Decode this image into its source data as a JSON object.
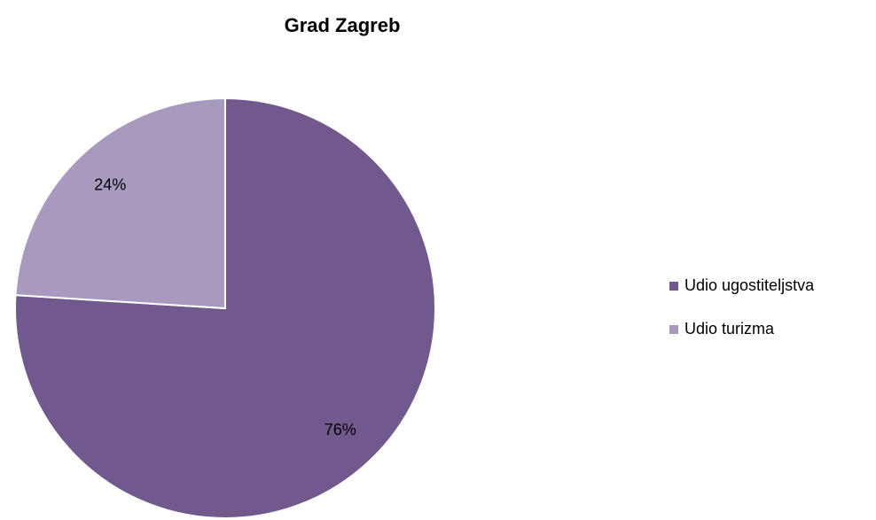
{
  "chart_data": {
    "type": "pie",
    "title": "Grad Zagreb",
    "categories": [
      "Udio ugostiteljstva",
      "Udio turizma"
    ],
    "values": [
      76,
      24
    ],
    "value_labels": [
      "76%",
      "24%"
    ],
    "colors": [
      "#71598e",
      "#a899be"
    ],
    "legend": "right"
  }
}
